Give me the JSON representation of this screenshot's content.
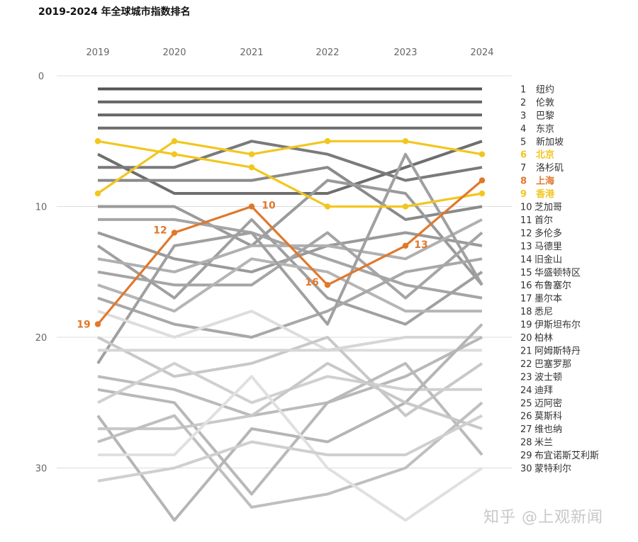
{
  "chart_data": {
    "type": "line",
    "title": "2019-2024 年全球城市指数排名",
    "x": [
      "2019",
      "2020",
      "2021",
      "2022",
      "2023",
      "2024"
    ],
    "y_ticks": [
      0,
      10,
      20,
      30
    ],
    "ylim": [
      0,
      35
    ],
    "y_inverted": true,
    "highlight_colors": {
      "yellow": "#f2c61f",
      "orange": "#e0782c"
    },
    "labels": [
      {
        "rank": "1",
        "name": "纽约",
        "highlight": null
      },
      {
        "rank": "2",
        "name": "伦敦",
        "highlight": null
      },
      {
        "rank": "3",
        "name": "巴黎",
        "highlight": null
      },
      {
        "rank": "4",
        "name": "东京",
        "highlight": null
      },
      {
        "rank": "5",
        "name": "新加坡",
        "highlight": null
      },
      {
        "rank": "6",
        "name": "北京",
        "highlight": "yellow"
      },
      {
        "rank": "7",
        "name": "洛杉矶",
        "highlight": null
      },
      {
        "rank": "8",
        "name": "上海",
        "highlight": "orange"
      },
      {
        "rank": "9",
        "name": "香港",
        "highlight": "yellow"
      },
      {
        "rank": "10",
        "name": "芝加哥",
        "highlight": null
      },
      {
        "rank": "11",
        "name": "首尔",
        "highlight": null
      },
      {
        "rank": "12",
        "name": "多伦多",
        "highlight": null
      },
      {
        "rank": "13",
        "name": "马德里",
        "highlight": null
      },
      {
        "rank": "14",
        "name": "旧金山",
        "highlight": null
      },
      {
        "rank": "15",
        "name": "华盛顿特区",
        "highlight": null
      },
      {
        "rank": "16",
        "name": "布鲁塞尔",
        "highlight": null
      },
      {
        "rank": "17",
        "name": "墨尔本",
        "highlight": null
      },
      {
        "rank": "18",
        "name": "悉尼",
        "highlight": null
      },
      {
        "rank": "19",
        "name": "伊斯坦布尔",
        "highlight": null
      },
      {
        "rank": "20",
        "name": "柏林",
        "highlight": null
      },
      {
        "rank": "21",
        "name": "阿姆斯特丹",
        "highlight": null
      },
      {
        "rank": "22",
        "name": "巴塞罗那",
        "highlight": null
      },
      {
        "rank": "23",
        "name": "波士顿",
        "highlight": null
      },
      {
        "rank": "24",
        "name": "迪拜",
        "highlight": null
      },
      {
        "rank": "25",
        "name": "迈阿密",
        "highlight": null
      },
      {
        "rank": "26",
        "name": "莫斯科",
        "highlight": null
      },
      {
        "rank": "27",
        "name": "维也纳",
        "highlight": null
      },
      {
        "rank": "28",
        "name": "米兰",
        "highlight": null
      },
      {
        "rank": "29",
        "name": "布宜诺斯艾利斯",
        "highlight": null
      },
      {
        "rank": "30",
        "name": "蒙特利尔",
        "highlight": null
      }
    ],
    "series": [
      {
        "name": "纽约",
        "values": [
          1,
          1,
          1,
          1,
          1,
          1
        ],
        "color": "#555555"
      },
      {
        "name": "伦敦",
        "values": [
          2,
          2,
          2,
          2,
          2,
          2
        ],
        "color": "#666666"
      },
      {
        "name": "巴黎",
        "values": [
          3,
          3,
          3,
          3,
          3,
          3
        ],
        "color": "#666666"
      },
      {
        "name": "东京",
        "values": [
          4,
          4,
          4,
          4,
          4,
          4
        ],
        "color": "#6e6e6e"
      },
      {
        "name": "新加坡",
        "values": [
          6,
          9,
          9,
          9,
          7,
          5
        ],
        "color": "#6e6e6e"
      },
      {
        "name": "洛杉矶",
        "values": [
          7,
          7,
          5,
          6,
          8,
          7
        ],
        "color": "#7a7a7a"
      },
      {
        "name": "芝加哥",
        "values": [
          8,
          8,
          8,
          7,
          11,
          10
        ],
        "color": "#8a8a8a"
      },
      {
        "name": "首尔",
        "values": [
          10,
          10,
          13,
          8,
          9,
          16
        ],
        "color": "#9a9a9a"
      },
      {
        "name": "多伦多",
        "values": [
          11,
          11,
          12,
          14,
          16,
          17
        ],
        "color": "#a5a5a5"
      },
      {
        "name": "马德里",
        "values": [
          12,
          14,
          15,
          13,
          12,
          13
        ],
        "color": "#9a9a9a"
      },
      {
        "name": "旧金山",
        "values": [
          13,
          17,
          11,
          17,
          19,
          15
        ],
        "color": "#a0a0a0"
      },
      {
        "name": "华盛顿特区",
        "values": [
          14,
          15,
          13,
          13,
          14,
          11
        ],
        "color": "#b0b0b0"
      },
      {
        "name": "布鲁塞尔",
        "values": [
          15,
          16,
          16,
          12,
          17,
          12
        ],
        "color": "#a5a5a5"
      },
      {
        "name": "墨尔本",
        "values": [
          16,
          18,
          14,
          15,
          18,
          18
        ],
        "color": "#b5b5b5"
      },
      {
        "name": "悉尼",
        "values": [
          17,
          19,
          20,
          18,
          15,
          14
        ],
        "color": "#a8a8a8"
      },
      {
        "name": "伊斯坦布尔",
        "values": [
          22,
          13,
          12,
          19,
          6,
          16
        ],
        "color": "#a0a0a0"
      },
      {
        "name": "柏林",
        "values": [
          18,
          20,
          18,
          21,
          21,
          21
        ],
        "color": "#dddddd"
      },
      {
        "name": "阿姆斯特丹",
        "values": [
          20,
          23,
          22,
          20,
          26,
          22
        ],
        "color": "#c8c8c8"
      },
      {
        "name": "巴塞罗那",
        "values": [
          21,
          21,
          21,
          21,
          20,
          20
        ],
        "color": "#d6d6d6"
      },
      {
        "name": "波士顿",
        "values": [
          23,
          24,
          26,
          25,
          22,
          29
        ],
        "color": "#bbbbbb"
      },
      {
        "name": "迪拜",
        "values": [
          24,
          25,
          32,
          25,
          23,
          20
        ],
        "color": "#b8b8b8"
      },
      {
        "name": "迈阿密",
        "values": [
          25,
          22,
          25,
          23,
          24,
          24
        ],
        "color": "#d0d0d0"
      },
      {
        "name": "莫斯科",
        "values": [
          26,
          34,
          27,
          28,
          25,
          19
        ],
        "color": "#b5b5b5"
      },
      {
        "name": "维也纳",
        "values": [
          27,
          27,
          26,
          22,
          25,
          27
        ],
        "color": "#c8c8c8"
      },
      {
        "name": "米兰",
        "values": [
          28,
          26,
          33,
          32,
          30,
          25
        ],
        "color": "#bfbfbf"
      },
      {
        "name": "布宜诺斯艾利斯",
        "values": [
          29,
          29,
          23,
          30,
          34,
          30
        ],
        "color": "#e0e0e0"
      },
      {
        "name": "蒙特利尔",
        "values": [
          31,
          30,
          28,
          29,
          29,
          26
        ],
        "color": "#cfcfcf"
      },
      {
        "name": "北京",
        "values": [
          5,
          6,
          7,
          10,
          10,
          9
        ],
        "color": "#f2c61f"
      },
      {
        "name": "香港",
        "values": [
          9,
          5,
          6,
          5,
          5,
          6
        ],
        "color": "#f2c61f"
      },
      {
        "name": "上海",
        "values": [
          19,
          12,
          10,
          16,
          13,
          8
        ],
        "color": "#e0782c",
        "point_labels": [
          "19",
          "12",
          "10",
          "16",
          "13",
          ""
        ]
      }
    ]
  },
  "watermark": "知乎 @上观新闻"
}
